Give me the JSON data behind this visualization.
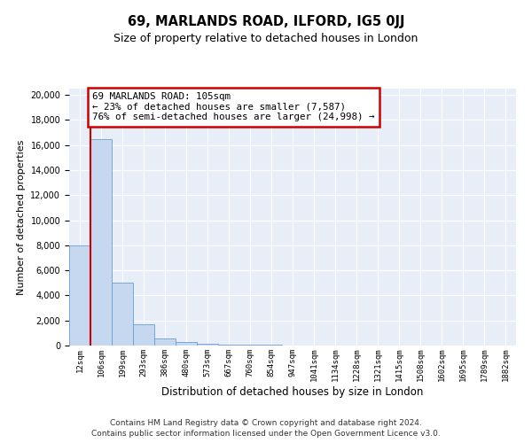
{
  "title": "69, MARLANDS ROAD, ILFORD, IG5 0JJ",
  "subtitle": "Size of property relative to detached houses in London",
  "xlabel": "Distribution of detached houses by size in London",
  "ylabel": "Number of detached properties",
  "annotation_title": "69 MARLANDS ROAD: 105sqm",
  "annotation_line1": "← 23% of detached houses are smaller (7,587)",
  "annotation_line2": "76% of semi-detached houses are larger (24,998) →",
  "footer1": "Contains HM Land Registry data © Crown copyright and database right 2024.",
  "footer2": "Contains public sector information licensed under the Open Government Licence v3.0.",
  "bar_labels": [
    "12sqm",
    "106sqm",
    "199sqm",
    "293sqm",
    "386sqm",
    "480sqm",
    "573sqm",
    "667sqm",
    "760sqm",
    "854sqm",
    "947sqm",
    "1041sqm",
    "1134sqm",
    "1228sqm",
    "1321sqm",
    "1415sqm",
    "1508sqm",
    "1602sqm",
    "1695sqm",
    "1789sqm",
    "1882sqm"
  ],
  "bar_values": [
    8000,
    16500,
    5000,
    1700,
    600,
    250,
    150,
    100,
    100,
    50,
    30,
    20,
    15,
    10,
    5,
    5,
    3,
    2,
    2,
    1,
    1
  ],
  "bar_color": "#c5d8f0",
  "bar_edgecolor": "#6b9fd4",
  "vline_color": "#cc0000",
  "annotation_box_color": "#cc0000",
  "bg_color": "#e8eef7",
  "ylim": [
    0,
    20500
  ],
  "yticks": [
    0,
    2000,
    4000,
    6000,
    8000,
    10000,
    12000,
    14000,
    16000,
    18000,
    20000
  ]
}
